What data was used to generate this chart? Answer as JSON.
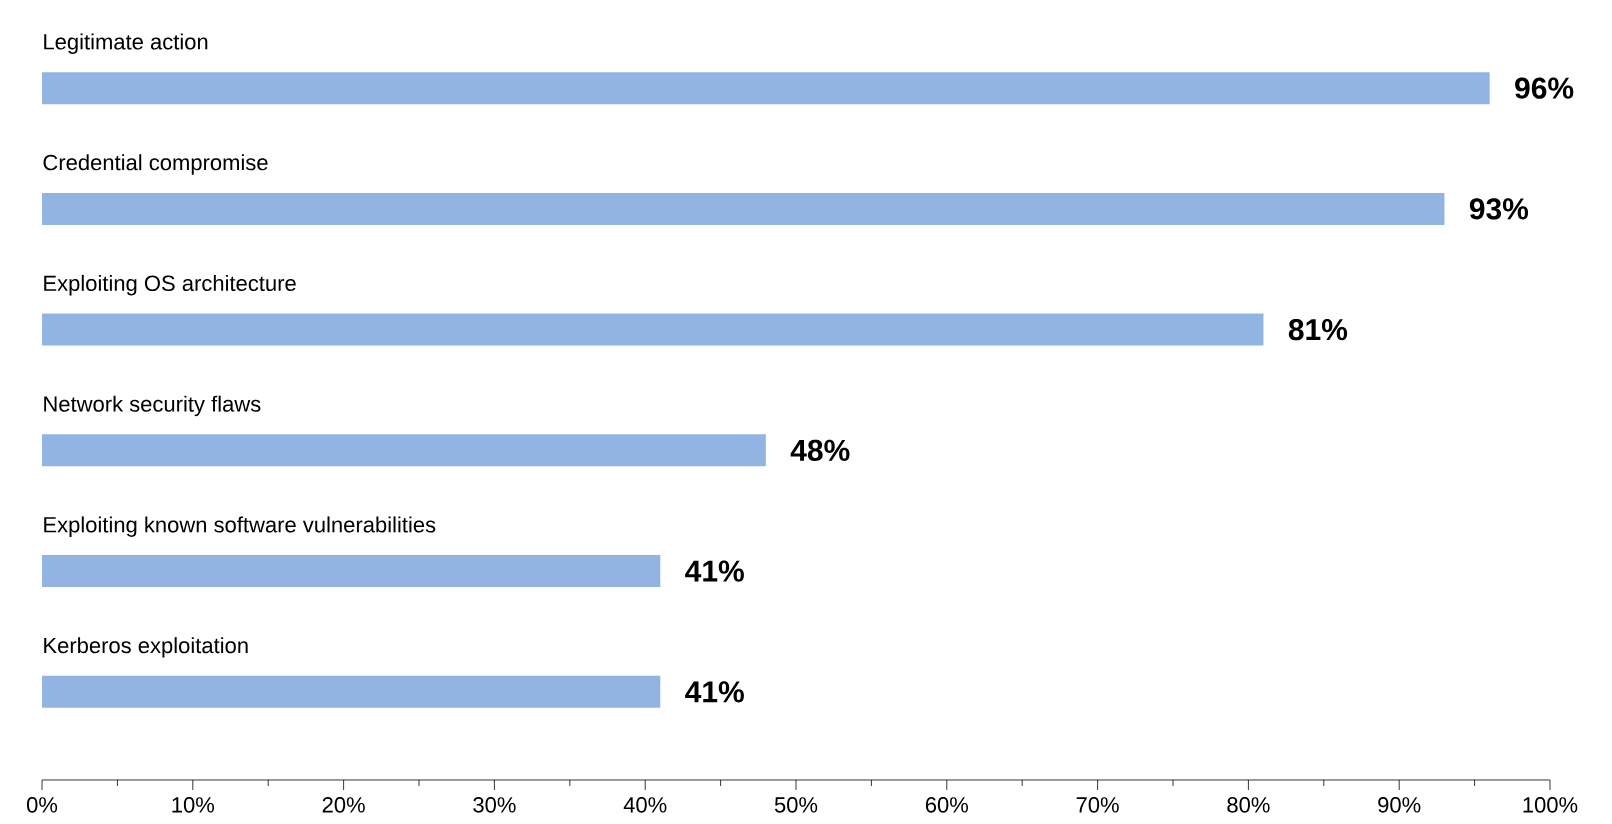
{
  "chart_data": {
    "type": "bar",
    "orientation": "horizontal",
    "categories": [
      "Legitimate action",
      "Credential compromise",
      "Exploiting OS architecture",
      "Network security flaws",
      "Exploiting known software vulnerabilities",
      "Kerberos exploitation"
    ],
    "values": [
      96,
      93,
      81,
      48,
      41,
      41
    ],
    "value_labels": [
      "96%",
      "93%",
      "81%",
      "48%",
      "41%",
      "41%"
    ],
    "color": "#92b4e3",
    "xlim": [
      0,
      100
    ],
    "xticks": [
      {
        "value": 0,
        "label": "0%"
      },
      {
        "value": 10,
        "label": "10%"
      },
      {
        "value": 20,
        "label": "20%"
      },
      {
        "value": 30,
        "label": "30%"
      },
      {
        "value": 40,
        "label": "40%"
      },
      {
        "value": 50,
        "label": "50%"
      },
      {
        "value": 60,
        "label": "60%"
      },
      {
        "value": 70,
        "label": "70%"
      },
      {
        "value": 80,
        "label": "80%"
      },
      {
        "value": 90,
        "label": "90%"
      },
      {
        "value": 100,
        "label": "100%"
      }
    ],
    "tick_labels": "x"
  }
}
